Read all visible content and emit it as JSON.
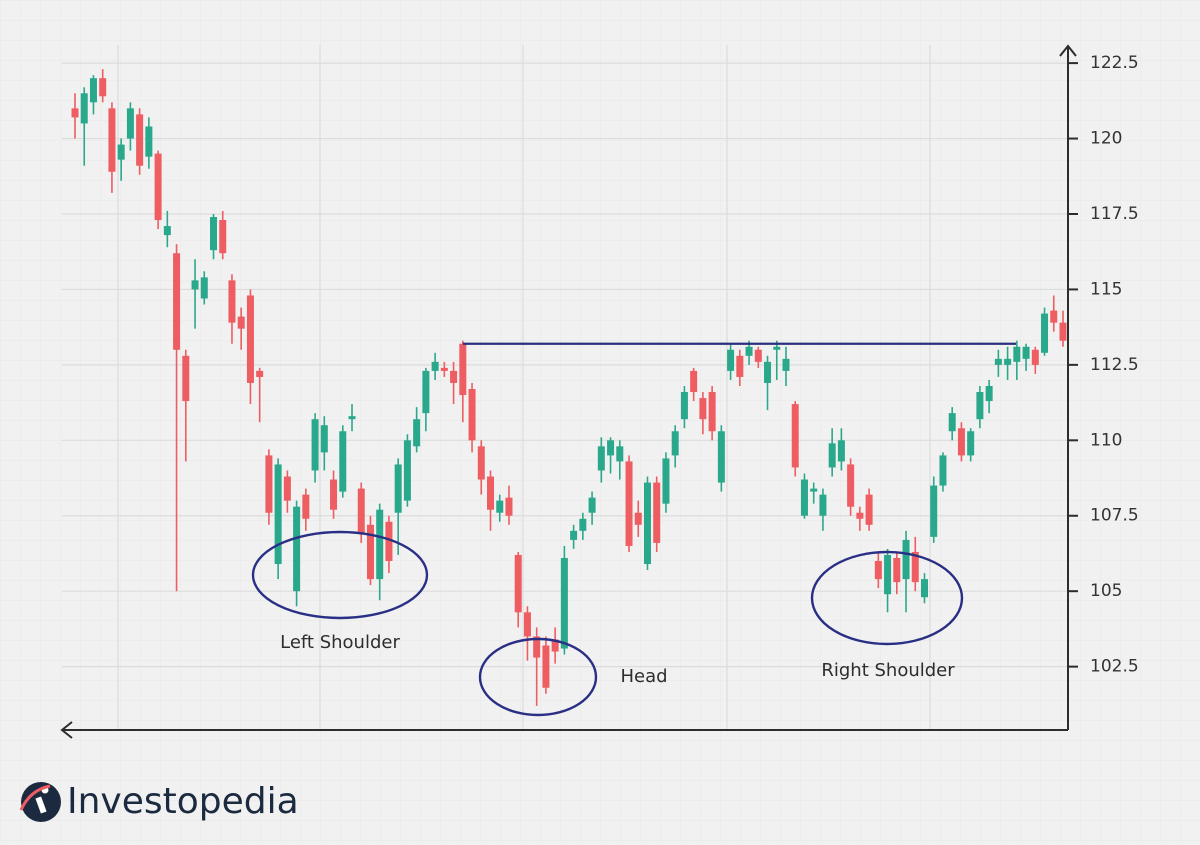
{
  "chart_data": {
    "type": "candlestick",
    "up_color": "#2aa88c",
    "down_color": "#ee5d61",
    "ylim": [
      100.4,
      123.1
    ],
    "yticks": [
      102.5,
      105,
      107.5,
      110,
      112.5,
      115,
      117.5,
      120,
      122.5
    ],
    "grid": true,
    "neckline": 113.2,
    "annotations": [
      "Left Shoulder",
      "Head",
      "Right Shoulder"
    ],
    "open": [
      121.0,
      120.5,
      121.2,
      122.0,
      121.0,
      119.3,
      120.0,
      120.8,
      119.4,
      119.5,
      116.8,
      116.2,
      112.8,
      115.0,
      114.7,
      116.3,
      117.3,
      115.3,
      114.1,
      114.8,
      112.3,
      109.5,
      105.9,
      108.8,
      105.0,
      108.2,
      109.0,
      109.6,
      108.7,
      108.3,
      110.7,
      108.4,
      107.2,
      105.4,
      107.3,
      107.6,
      108.0,
      109.8,
      110.9,
      112.3,
      112.4,
      112.3,
      113.2,
      111.7,
      109.8,
      108.8,
      107.6,
      108.1,
      106.2,
      104.3,
      103.5,
      103.2,
      103.4,
      103.1,
      106.7,
      107.0,
      107.6,
      109.0,
      109.5,
      109.3,
      109.3,
      107.6,
      105.9,
      108.6,
      107.9,
      109.5,
      110.7,
      112.3,
      111.4,
      111.6,
      108.6,
      112.3,
      112.8,
      112.8,
      113.0,
      111.9,
      113.0,
      112.3,
      111.2,
      107.5,
      108.3,
      107.5,
      109.1,
      109.3,
      109.2,
      107.6,
      108.2,
      106.0,
      104.9,
      106.1,
      105.4,
      106.3,
      104.8,
      106.8,
      108.5,
      110.3,
      110.4,
      109.5,
      110.7,
      111.3,
      112.5,
      112.5,
      112.6,
      112.7,
      113.0,
      112.9,
      114.3,
      113.9
    ],
    "high": [
      121.5,
      121.7,
      122.1,
      122.3,
      121.2,
      120.0,
      121.2,
      121.0,
      120.7,
      119.6,
      117.6,
      116.5,
      113.0,
      116.0,
      115.6,
      117.5,
      117.6,
      115.5,
      114.4,
      115.0,
      112.4,
      109.7,
      109.4,
      109.0,
      108.0,
      108.4,
      110.9,
      110.8,
      109.0,
      110.5,
      111.2,
      108.6,
      107.5,
      107.9,
      107.5,
      109.4,
      110.2,
      111.1,
      112.4,
      112.9,
      112.6,
      112.6,
      113.3,
      111.9,
      110.0,
      109.0,
      108.2,
      108.5,
      106.3,
      104.5,
      103.8,
      103.5,
      103.8,
      106.5,
      107.2,
      107.6,
      108.3,
      110.1,
      110.1,
      110.0,
      109.5,
      108.0,
      108.8,
      108.8,
      109.6,
      110.5,
      111.8,
      112.4,
      111.6,
      111.8,
      110.5,
      113.2,
      113.0,
      113.3,
      113.1,
      112.8,
      113.3,
      113.1,
      111.3,
      108.9,
      108.6,
      108.4,
      110.4,
      110.4,
      109.4,
      107.8,
      108.4,
      106.3,
      106.4,
      106.3,
      107.0,
      106.8,
      105.6,
      108.8,
      109.6,
      111.1,
      110.6,
      110.4,
      111.8,
      112.0,
      113.0,
      113.1,
      113.3,
      113.2,
      113.1,
      114.4,
      114.8,
      114.3
    ],
    "low": [
      120.0,
      119.1,
      120.8,
      121.2,
      118.2,
      118.6,
      119.6,
      118.8,
      119.0,
      117.0,
      116.4,
      105.0,
      109.3,
      113.7,
      114.5,
      116.0,
      116.0,
      113.2,
      113.0,
      111.2,
      110.6,
      107.2,
      105.4,
      107.6,
      104.5,
      107.0,
      108.6,
      109.0,
      107.4,
      108.1,
      110.3,
      106.6,
      105.2,
      104.7,
      105.6,
      106.2,
      107.8,
      109.6,
      110.3,
      112.0,
      112.1,
      111.2,
      110.6,
      109.6,
      108.2,
      107.0,
      107.3,
      107.2,
      103.8,
      102.7,
      101.2,
      101.6,
      102.6,
      102.9,
      106.4,
      106.7,
      107.2,
      108.6,
      108.9,
      108.7,
      106.3,
      106.8,
      105.7,
      106.3,
      107.6,
      109.1,
      110.4,
      111.3,
      110.2,
      110.0,
      108.3,
      112.0,
      111.8,
      112.5,
      112.4,
      111.0,
      112.0,
      111.8,
      108.8,
      107.4,
      107.9,
      107.0,
      108.8,
      109.0,
      107.5,
      107.0,
      107.0,
      105.1,
      104.3,
      104.9,
      104.3,
      105.0,
      104.6,
      106.6,
      108.3,
      110.0,
      109.3,
      109.3,
      110.4,
      110.9,
      112.1,
      112.0,
      112.0,
      112.3,
      112.2,
      112.8,
      113.6,
      113.1
    ],
    "close": [
      120.7,
      121.5,
      122.0,
      121.4,
      118.9,
      119.8,
      121.0,
      119.1,
      120.4,
      117.3,
      117.1,
      113.0,
      111.3,
      115.3,
      115.4,
      117.4,
      116.2,
      113.9,
      113.7,
      111.9,
      112.1,
      107.6,
      109.2,
      108.0,
      107.8,
      107.4,
      110.7,
      110.5,
      107.7,
      110.3,
      110.8,
      106.9,
      105.4,
      107.7,
      106.0,
      109.2,
      110.0,
      110.7,
      112.3,
      112.6,
      112.3,
      111.9,
      111.5,
      110.0,
      108.7,
      107.7,
      108.0,
      107.5,
      104.3,
      103.5,
      102.8,
      101.8,
      103.0,
      106.1,
      107.0,
      107.4,
      108.1,
      109.8,
      110.0,
      109.8,
      106.5,
      107.2,
      108.6,
      106.6,
      109.4,
      110.3,
      111.6,
      111.6,
      110.7,
      110.3,
      110.3,
      113.0,
      112.1,
      113.1,
      112.6,
      112.6,
      113.1,
      112.7,
      109.1,
      108.7,
      108.4,
      108.2,
      109.9,
      110.0,
      107.8,
      107.4,
      107.2,
      105.4,
      106.2,
      105.3,
      106.7,
      105.3,
      105.4,
      108.5,
      109.5,
      110.9,
      109.5,
      110.3,
      111.6,
      111.8,
      112.7,
      112.7,
      113.1,
      113.1,
      112.5,
      114.2,
      113.9,
      113.3
    ]
  },
  "brand": "Investopedia"
}
